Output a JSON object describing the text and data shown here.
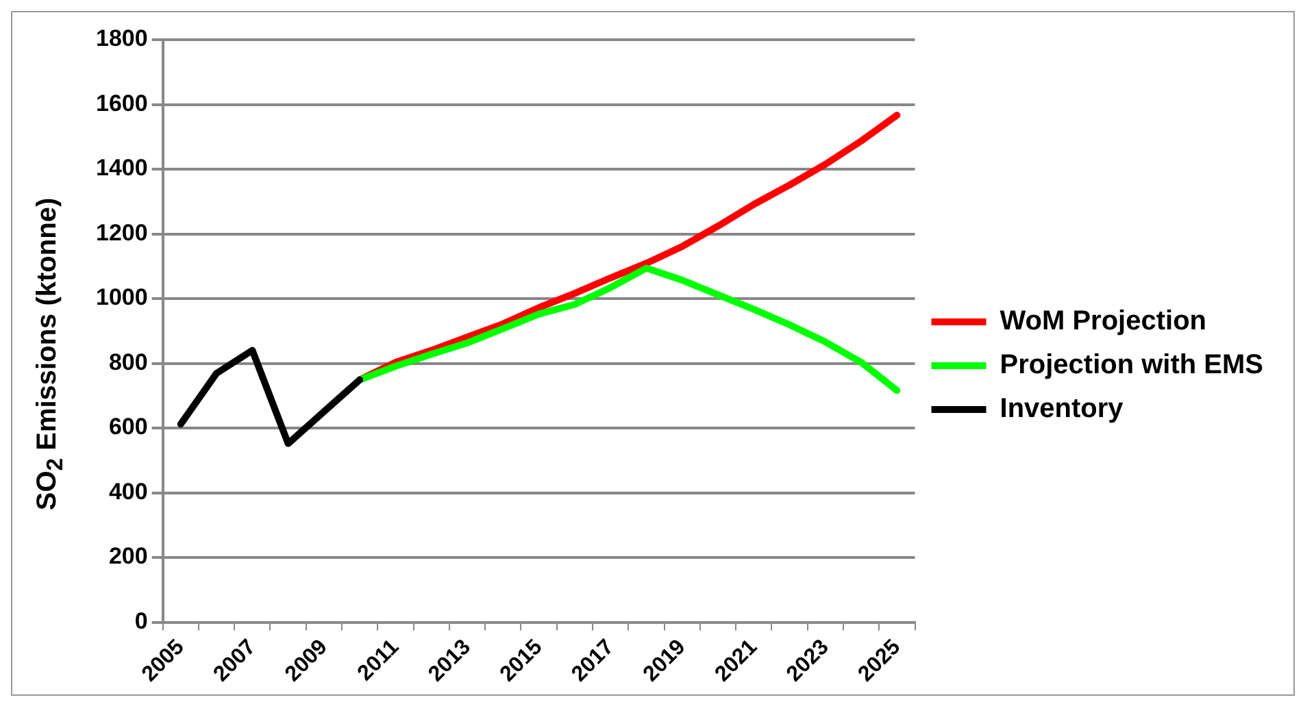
{
  "chart_data": {
    "type": "line",
    "ylabel": "SO$_{2}$ Emissions (ktonne)",
    "categories": [
      "2005",
      null,
      "2007",
      null,
      "2009",
      null,
      "2011",
      null,
      "2013",
      null,
      "2015",
      null,
      "2017",
      null,
      "2019",
      null,
      "2021",
      null,
      "2023",
      null,
      "2025"
    ],
    "series": [
      {
        "name": "WoM Projection",
        "color": "#ff0000",
        "values": [
          null,
          null,
          null,
          null,
          null,
          749,
          803,
          840,
          881,
          922,
          972,
          1016,
          1064,
          1109,
          1161,
          1224,
          1291,
          1351,
          1415,
          1487,
          1567
        ]
      },
      {
        "name": "Projection with EMS",
        "color": "#00ff00",
        "values": [
          null,
          null,
          null,
          null,
          null,
          749,
          791,
          828,
          863,
          907,
          952,
          982,
          1034,
          1094,
          1057,
          1012,
          967,
          919,
          866,
          803,
          716
        ]
      },
      {
        "name": "Inventory",
        "color": "#000000",
        "values": [
          612,
          769,
          840,
          552,
          651,
          749,
          null,
          null,
          null,
          null,
          null,
          null,
          null,
          null,
          null,
          null,
          null,
          null,
          null,
          null,
          null
        ]
      }
    ],
    "ylim": [
      0,
      1800
    ],
    "yticks": [
      0,
      200,
      400,
      600,
      800,
      1000,
      1200,
      1400,
      1600,
      1800
    ],
    "grid": "y",
    "legend": "right",
    "marker": "none",
    "line_style": "solid"
  }
}
